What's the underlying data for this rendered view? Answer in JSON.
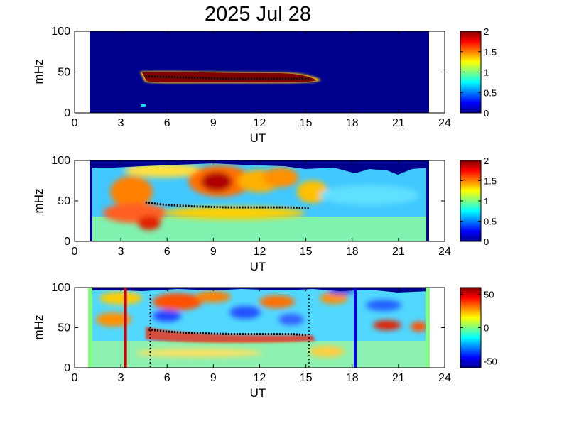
{
  "title": "2025 Jul 28",
  "chart_data": [
    {
      "type": "heatmap",
      "xlabel": "UT",
      "ylabel": "mHz",
      "xlim": [
        0,
        24
      ],
      "ylim": [
        0,
        100
      ],
      "xticks": [
        "0",
        "3",
        "6",
        "9",
        "12",
        "15",
        "18",
        "21",
        "24"
      ],
      "yticks": [
        "0",
        "50",
        "100"
      ],
      "data_x_range": [
        1.0,
        23.0
      ],
      "colorbar": {
        "range": [
          0,
          2
        ],
        "ticks": [
          "0",
          "0.5",
          "1",
          "1.5",
          "2"
        ]
      },
      "tracked_line": [
        [
          4.6,
          45
        ],
        [
          6,
          44
        ],
        [
          8,
          43
        ],
        [
          10,
          42
        ],
        [
          12,
          42
        ],
        [
          14,
          42
        ],
        [
          15.3,
          42
        ]
      ],
      "colors": {
        "background": "#000080",
        "band": "#7f0000"
      }
    },
    {
      "type": "heatmap",
      "xlabel": "UT",
      "ylabel": "mHz",
      "xlim": [
        0,
        24
      ],
      "ylim": [
        0,
        100
      ],
      "xticks": [
        "0",
        "3",
        "6",
        "9",
        "12",
        "15",
        "18",
        "21",
        "24"
      ],
      "yticks": [
        "0",
        "50",
        "100"
      ],
      "data_x_range": [
        1.0,
        23.0
      ],
      "colorbar": {
        "range": [
          0,
          2
        ],
        "ticks": [
          "0",
          "0.5",
          "1",
          "1.5",
          "2"
        ]
      },
      "tracked_line": [
        [
          4.6,
          48
        ],
        [
          6,
          45
        ],
        [
          8,
          43
        ],
        [
          10,
          42
        ],
        [
          12,
          42
        ],
        [
          14,
          42
        ],
        [
          15.2,
          41
        ]
      ]
    },
    {
      "type": "heatmap",
      "xlabel": "UT",
      "ylabel": "mHz",
      "xlim": [
        0,
        24
      ],
      "ylim": [
        0,
        100
      ],
      "xticks": [
        "0",
        "3",
        "6",
        "9",
        "12",
        "15",
        "18",
        "21",
        "24"
      ],
      "yticks": [
        "0",
        "50",
        "100"
      ],
      "data_x_range": [
        1.0,
        23.0
      ],
      "colorbar": {
        "range": [
          -60,
          60
        ],
        "ticks": [
          "50",
          "0",
          "-50"
        ]
      },
      "tracked_line": [
        [
          4.8,
          48
        ],
        [
          6,
          45
        ],
        [
          8,
          43
        ],
        [
          10,
          42
        ],
        [
          12,
          42
        ],
        [
          14,
          42
        ],
        [
          15,
          41
        ]
      ],
      "vertical_lines": [
        {
          "x": 3.3,
          "color": "#d00000"
        },
        {
          "x": 18.2,
          "color": "#0000e0"
        }
      ],
      "dotted_lines": [
        4.9,
        15.2
      ]
    }
  ]
}
